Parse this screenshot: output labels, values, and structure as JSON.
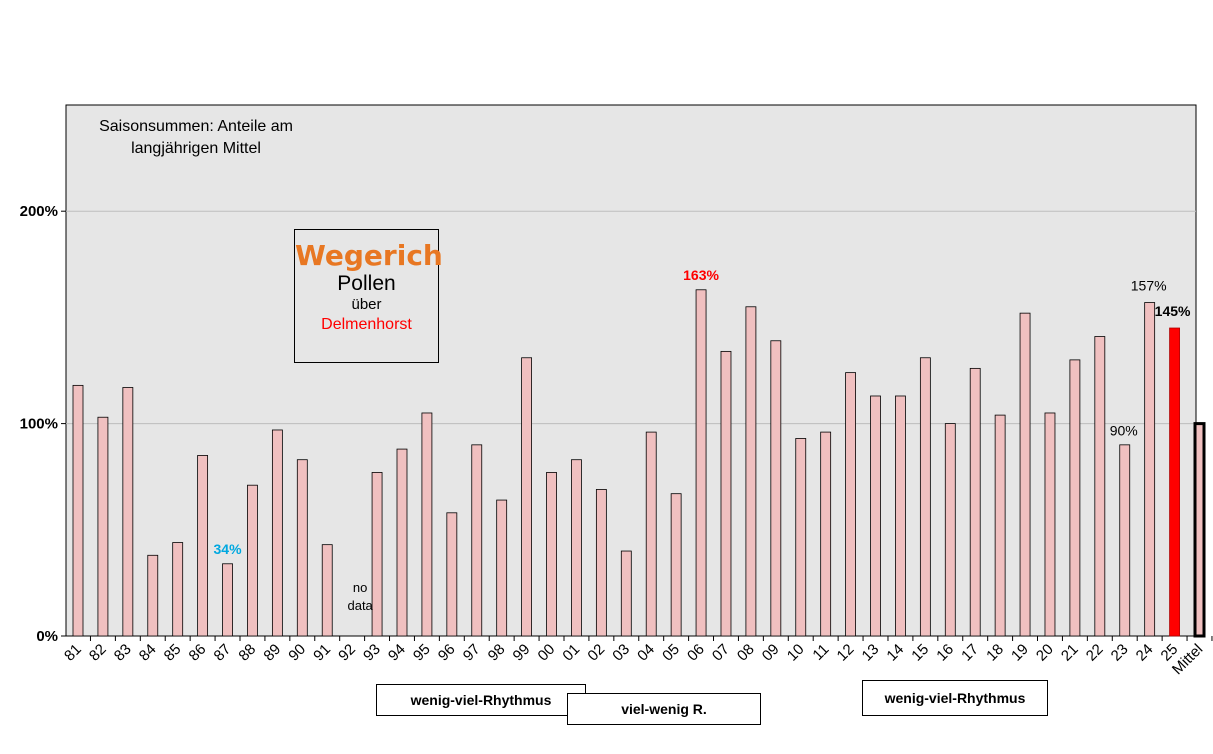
{
  "chart_data": {
    "type": "bar",
    "title": "Wegerich",
    "subtitle": "Saisonsummen:  Anteile am langjährigen Mittel",
    "box_lines": [
      "Pollen",
      "über",
      "Delmenhorst"
    ],
    "categories": [
      "81",
      "82",
      "83",
      "84",
      "85",
      "86",
      "87",
      "88",
      "89",
      "90",
      "91",
      "92",
      "93",
      "94",
      "95",
      "96",
      "97",
      "98",
      "99",
      "00",
      "01",
      "02",
      "03",
      "04",
      "05",
      "06",
      "07",
      "08",
      "09",
      "10",
      "11",
      "12",
      "13",
      "14",
      "15",
      "16",
      "17",
      "18",
      "19",
      "20",
      "21",
      "22",
      "23",
      "24",
      "25",
      "Mittel"
    ],
    "values": [
      118,
      103,
      117,
      38,
      44,
      85,
      34,
      71,
      97,
      83,
      43,
      null,
      77,
      88,
      105,
      58,
      90,
      64,
      131,
      77,
      83,
      69,
      40,
      96,
      67,
      163,
      134,
      155,
      139,
      93,
      96,
      124,
      113,
      113,
      131,
      100,
      126,
      104,
      152,
      105,
      130,
      141,
      90,
      157,
      145,
      100
    ],
    "ylim": [
      0,
      250
    ],
    "yticks": [
      0,
      100,
      200
    ],
    "ytick_labels": [
      "0%",
      "100%",
      "200%"
    ],
    "grid": true,
    "colors": {
      "bar": "#f0c0c0",
      "highlight": "#ff0000",
      "mean_outline": "#000000",
      "plot_bg": "#e6e6e6",
      "gridline": "#bdbdbd",
      "title": "#e87722",
      "place": "#ff0000",
      "label_min": "#00a8e0",
      "label_max": "#ff0000"
    },
    "annotations": [
      {
        "category": "87",
        "text": "34%",
        "color": "#00a8e0",
        "bold": true
      },
      {
        "category": "06",
        "text": "163%",
        "color": "#ff0000",
        "bold": true
      },
      {
        "category": "23",
        "text": "90%",
        "color": "#000000",
        "bold": false
      },
      {
        "category": "24",
        "text": "157%",
        "color": "#000000",
        "bold": false
      },
      {
        "category": "25",
        "text": "145%",
        "color": "#000000",
        "bold": true
      }
    ],
    "no_data": {
      "category": "92",
      "lines": [
        "no",
        "data"
      ]
    },
    "phases": [
      "wenig-viel-Rhythmus",
      "viel-wenig R.",
      "wenig-viel-Rhythmus"
    ]
  }
}
